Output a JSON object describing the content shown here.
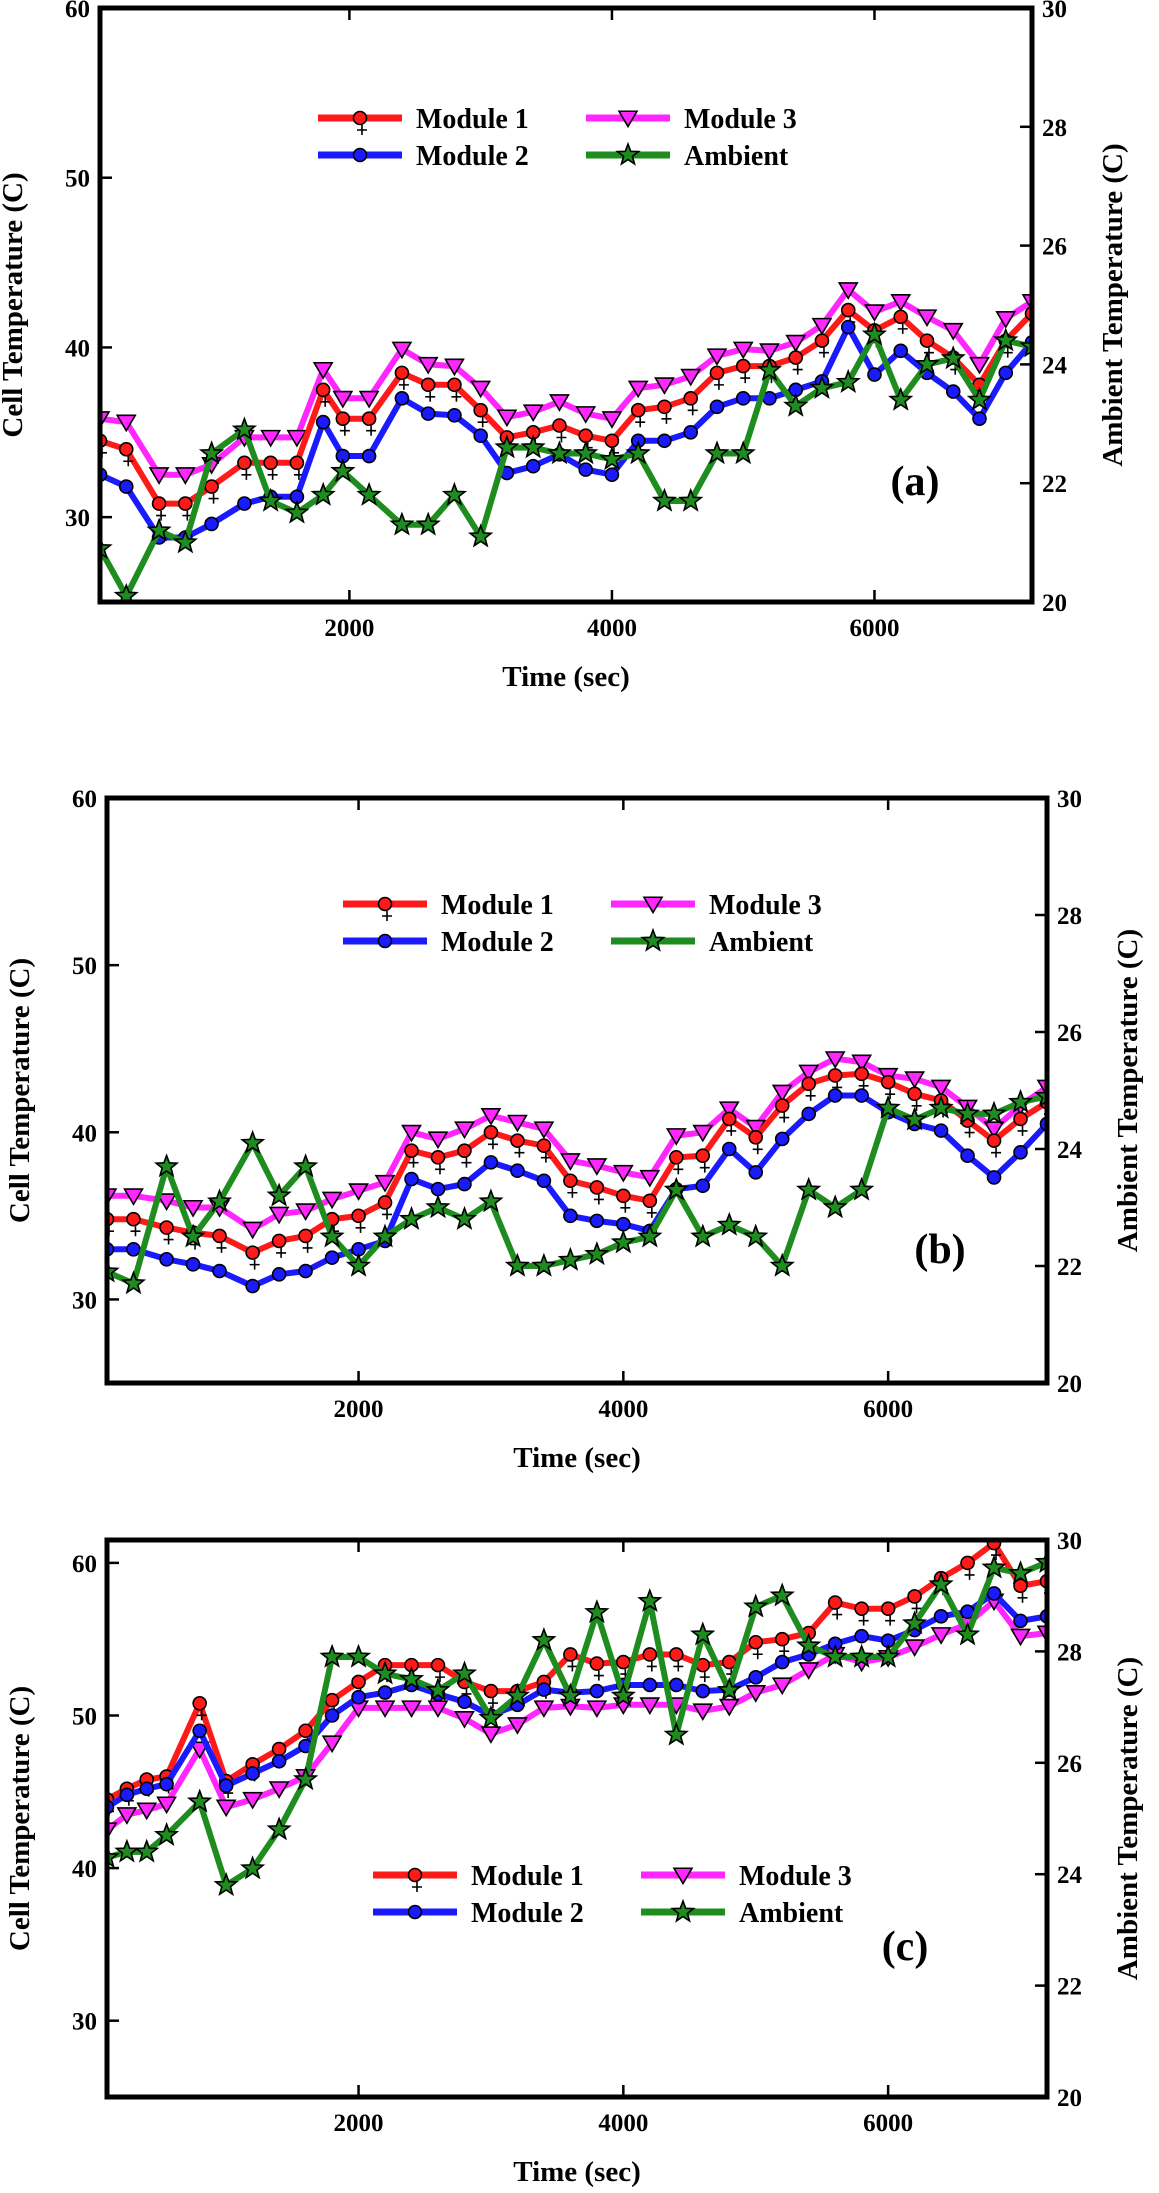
{
  "chart_data": [
    {
      "type": "line",
      "panel_label": "(a)",
      "xlabel": "Time (sec)",
      "ylabel": "Cell Temperature (C)",
      "y2label": "Ambient Temperature (C)",
      "xlim": [
        100,
        7200
      ],
      "ylim": [
        25,
        60
      ],
      "y2lim": [
        20,
        30
      ],
      "xticks": [
        2000,
        4000,
        6000
      ],
      "yticks": [
        30,
        40,
        50,
        60
      ],
      "y2ticks": [
        20,
        22,
        24,
        26,
        28,
        30
      ],
      "legend_position": "upper-center",
      "x": [
        100,
        300,
        550,
        750,
        950,
        1200,
        1400,
        1600,
        1800,
        1950,
        2150,
        2400,
        2600,
        2800,
        3000,
        3200,
        3400,
        3600,
        3800,
        4000,
        4200,
        4400,
        4600,
        4800,
        5000,
        5200,
        5400,
        5600,
        5800,
        6000,
        6200,
        6400,
        6600,
        6800,
        7000,
        7200
      ],
      "series": [
        {
          "name": "Module 1",
          "axis": "left",
          "color": "#ff1a1a",
          "marker": "circle",
          "values": [
            34.5,
            34.0,
            30.8,
            30.8,
            31.8,
            33.2,
            33.2,
            33.2,
            37.5,
            35.8,
            35.8,
            38.5,
            37.8,
            37.8,
            36.3,
            34.7,
            35.0,
            35.4,
            34.8,
            34.5,
            36.3,
            36.5,
            37.0,
            38.5,
            38.9,
            38.9,
            39.4,
            40.4,
            42.2,
            41.0,
            41.8,
            40.4,
            39.4,
            37.8,
            40.4,
            42.0
          ]
        },
        {
          "name": "Module 2",
          "axis": "left",
          "color": "#1a1aff",
          "marker": "circle",
          "values": [
            32.5,
            31.8,
            28.8,
            28.8,
            29.6,
            30.8,
            31.2,
            31.2,
            35.6,
            33.6,
            33.6,
            37.0,
            36.1,
            36.0,
            34.8,
            32.6,
            33.0,
            33.7,
            32.8,
            32.5,
            34.5,
            34.5,
            35.0,
            36.5,
            37.0,
            37.0,
            37.5,
            38.0,
            41.2,
            38.4,
            39.8,
            38.5,
            37.4,
            35.8,
            38.5,
            40.3
          ]
        },
        {
          "name": "Module 3",
          "axis": "left",
          "color": "#ff26ff",
          "marker": "triangle-down",
          "values": [
            35.8,
            35.6,
            32.5,
            32.5,
            33.1,
            34.7,
            34.7,
            34.7,
            38.7,
            37.0,
            37.0,
            39.9,
            39.0,
            38.9,
            37.6,
            35.9,
            36.2,
            36.8,
            36.1,
            35.8,
            37.6,
            37.8,
            38.3,
            39.5,
            39.9,
            39.8,
            40.3,
            41.3,
            43.4,
            42.1,
            42.7,
            41.8,
            41.0,
            39.0,
            41.7,
            42.7
          ]
        },
        {
          "name": "Ambient",
          "axis": "right",
          "color": "#1e8c1e",
          "marker": "star",
          "values": [
            20.9,
            20.1,
            21.2,
            21.0,
            22.5,
            22.9,
            21.7,
            21.5,
            21.8,
            22.2,
            21.8,
            21.3,
            21.3,
            21.8,
            21.1,
            22.6,
            22.6,
            22.5,
            22.5,
            22.4,
            22.5,
            21.7,
            21.7,
            22.5,
            22.5,
            23.9,
            23.3,
            23.6,
            23.7,
            24.5,
            23.4,
            24.0,
            24.1,
            23.4,
            24.4,
            24.3
          ]
        }
      ]
    },
    {
      "type": "line",
      "panel_label": "(b)",
      "xlabel": "Time (sec)",
      "ylabel": "Cell Temperature (C)",
      "y2label": "Ambient Temperature (C)",
      "xlim": [
        100,
        7200
      ],
      "ylim": [
        25,
        60
      ],
      "y2lim": [
        20,
        30
      ],
      "xticks": [
        2000,
        4000,
        6000
      ],
      "yticks": [
        30,
        40,
        50,
        60
      ],
      "y2ticks": [
        20,
        22,
        24,
        26,
        28,
        30
      ],
      "legend_position": "upper-center",
      "x": [
        100,
        300,
        550,
        750,
        950,
        1200,
        1400,
        1600,
        1800,
        2000,
        2200,
        2400,
        2600,
        2800,
        3000,
        3200,
        3400,
        3600,
        3800,
        4000,
        4200,
        4400,
        4600,
        4800,
        5000,
        5200,
        5400,
        5600,
        5800,
        6000,
        6200,
        6400,
        6600,
        6800,
        7000,
        7200
      ],
      "series": [
        {
          "name": "Module 1",
          "axis": "left",
          "color": "#ff1a1a",
          "marker": "circle",
          "values": [
            34.8,
            34.8,
            34.3,
            34.0,
            33.8,
            32.8,
            33.5,
            33.8,
            34.8,
            35.0,
            35.8,
            38.9,
            38.5,
            38.9,
            40.0,
            39.5,
            39.2,
            37.1,
            36.7,
            36.2,
            35.9,
            38.5,
            38.6,
            40.8,
            39.7,
            41.6,
            42.9,
            43.4,
            43.5,
            43.0,
            42.3,
            41.9,
            40.7,
            39.5,
            40.8,
            41.8
          ]
        },
        {
          "name": "Module 2",
          "axis": "left",
          "color": "#1a1aff",
          "marker": "circle",
          "values": [
            33.0,
            33.0,
            32.4,
            32.1,
            31.7,
            30.8,
            31.5,
            31.7,
            32.5,
            33.0,
            33.5,
            37.2,
            36.6,
            36.9,
            38.2,
            37.7,
            37.1,
            35.0,
            34.7,
            34.5,
            34.1,
            36.6,
            36.8,
            39.0,
            37.6,
            39.6,
            41.1,
            42.2,
            42.2,
            41.2,
            40.5,
            40.1,
            38.6,
            37.3,
            38.8,
            40.5
          ]
        },
        {
          "name": "Module 3",
          "axis": "left",
          "color": "#ff26ff",
          "marker": "triangle-down",
          "values": [
            36.2,
            36.2,
            35.9,
            35.5,
            35.5,
            34.2,
            35.1,
            35.3,
            36.0,
            36.5,
            37.0,
            40.0,
            39.6,
            40.2,
            41.0,
            40.6,
            40.2,
            38.3,
            38.0,
            37.6,
            37.3,
            39.8,
            40.0,
            41.4,
            40.3,
            42.4,
            43.6,
            44.4,
            44.2,
            43.4,
            43.2,
            42.7,
            41.5,
            40.2,
            41.6,
            42.7
          ]
        },
        {
          "name": "Ambient",
          "axis": "right",
          "color": "#1e8c1e",
          "marker": "star",
          "values": [
            21.9,
            21.7,
            23.7,
            22.5,
            23.1,
            24.1,
            23.2,
            23.7,
            22.5,
            22.0,
            22.5,
            22.8,
            23.0,
            22.8,
            23.1,
            22.0,
            22.0,
            22.1,
            22.2,
            22.4,
            22.5,
            23.3,
            22.5,
            22.7,
            22.5,
            22.0,
            23.3,
            23.0,
            23.3,
            24.7,
            24.5,
            24.7,
            24.6,
            24.6,
            24.8,
            24.9
          ]
        }
      ]
    },
    {
      "type": "line",
      "panel_label": "(c)",
      "xlabel": "Time (sec)",
      "ylabel": "Cell Temperature (C)",
      "y2label": "Ambient Temperature (C)",
      "xlim": [
        100,
        7200
      ],
      "ylim": [
        25,
        61.5
      ],
      "y2lim": [
        20,
        30
      ],
      "xticks": [
        2000,
        4000,
        6000
      ],
      "yticks": [
        30,
        40,
        50,
        60
      ],
      "y2ticks": [
        20,
        22,
        24,
        26,
        28,
        30
      ],
      "legend_position": "lower-center",
      "x": [
        100,
        250,
        400,
        550,
        800,
        1000,
        1200,
        1400,
        1600,
        1800,
        2000,
        2200,
        2400,
        2600,
        2800,
        3000,
        3200,
        3400,
        3600,
        3800,
        4000,
        4200,
        4400,
        4600,
        4800,
        5000,
        5200,
        5400,
        5600,
        5800,
        6000,
        6200,
        6400,
        6600,
        6800,
        7000,
        7200
      ],
      "series": [
        {
          "name": "Module 1",
          "axis": "left",
          "color": "#ff1a1a",
          "marker": "circle",
          "values": [
            44.5,
            45.2,
            45.8,
            46.0,
            50.8,
            45.7,
            46.8,
            47.8,
            49.0,
            51.0,
            52.2,
            53.3,
            53.3,
            53.3,
            52.2,
            51.6,
            51.6,
            52.2,
            54.0,
            53.4,
            53.5,
            54.0,
            54.0,
            53.3,
            53.5,
            54.8,
            55.0,
            55.4,
            57.4,
            57.0,
            57.0,
            57.8,
            59.0,
            60.0,
            61.3,
            58.5,
            58.8
          ]
        },
        {
          "name": "Module 2",
          "axis": "left",
          "color": "#1a1aff",
          "marker": "circle",
          "values": [
            44.0,
            44.8,
            45.2,
            45.5,
            49.0,
            45.4,
            46.2,
            47.0,
            48.0,
            50.0,
            51.2,
            51.5,
            52.0,
            51.4,
            50.9,
            50.0,
            50.7,
            51.7,
            51.5,
            51.6,
            52.0,
            52.0,
            52.0,
            51.6,
            51.7,
            52.5,
            53.5,
            54.0,
            54.7,
            55.2,
            54.9,
            55.6,
            56.5,
            56.8,
            58.0,
            56.2,
            56.5
          ]
        },
        {
          "name": "Module 3",
          "axis": "left",
          "color": "#ff26ff",
          "marker": "triangle-down",
          "values": [
            42.5,
            43.5,
            43.8,
            44.2,
            47.8,
            44.0,
            44.5,
            45.2,
            46.0,
            48.2,
            50.5,
            50.5,
            50.5,
            50.5,
            49.8,
            48.8,
            49.4,
            50.5,
            50.6,
            50.5,
            50.7,
            50.7,
            50.7,
            50.3,
            50.6,
            51.5,
            52.0,
            53.0,
            54.0,
            53.5,
            53.8,
            54.5,
            55.3,
            56.0,
            57.5,
            55.2,
            55.4
          ]
        },
        {
          "name": "Ambient",
          "axis": "right",
          "color": "#1e8c1e",
          "marker": "star",
          "values": [
            24.3,
            24.4,
            24.4,
            24.7,
            25.3,
            23.8,
            24.1,
            24.8,
            25.7,
            27.9,
            27.9,
            27.6,
            27.5,
            27.3,
            27.6,
            26.8,
            27.2,
            28.2,
            27.2,
            28.7,
            27.2,
            28.9,
            26.5,
            28.3,
            27.3,
            28.8,
            29.0,
            28.1,
            27.9,
            27.9,
            27.9,
            28.5,
            29.2,
            28.3,
            29.5,
            29.4,
            29.6
          ]
        }
      ]
    }
  ]
}
